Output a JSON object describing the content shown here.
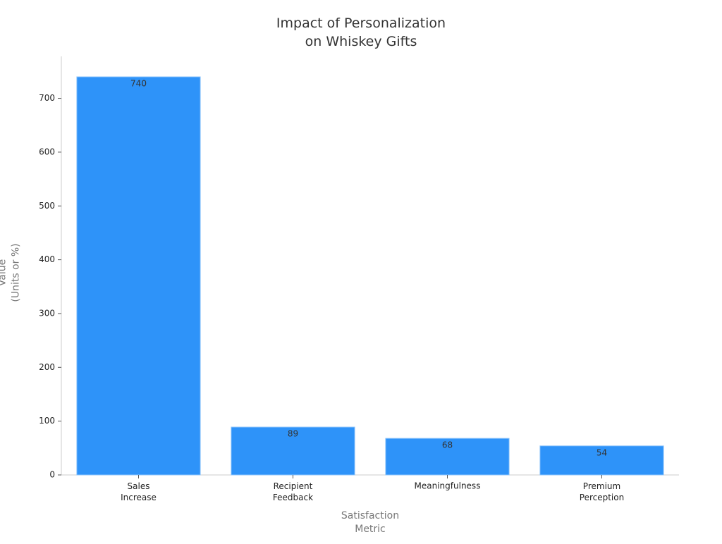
{
  "chart_data": {
    "type": "bar",
    "title": "Impact of Personalization\non Whiskey Gifts",
    "x_label": "Satisfaction\nMetric",
    "y_label": "Value\n(Units or %)",
    "categories": [
      "Sales\nIncrease",
      "Recipient\nFeedback",
      "Meaningfulness",
      "Premium\nPerception"
    ],
    "values": [
      740,
      89,
      68,
      54
    ],
    "color": "#2e93f9",
    "ylim": [
      0,
      778
    ],
    "yticks": [
      0,
      100,
      200,
      300,
      400,
      500,
      600,
      700
    ],
    "grid": false
  }
}
